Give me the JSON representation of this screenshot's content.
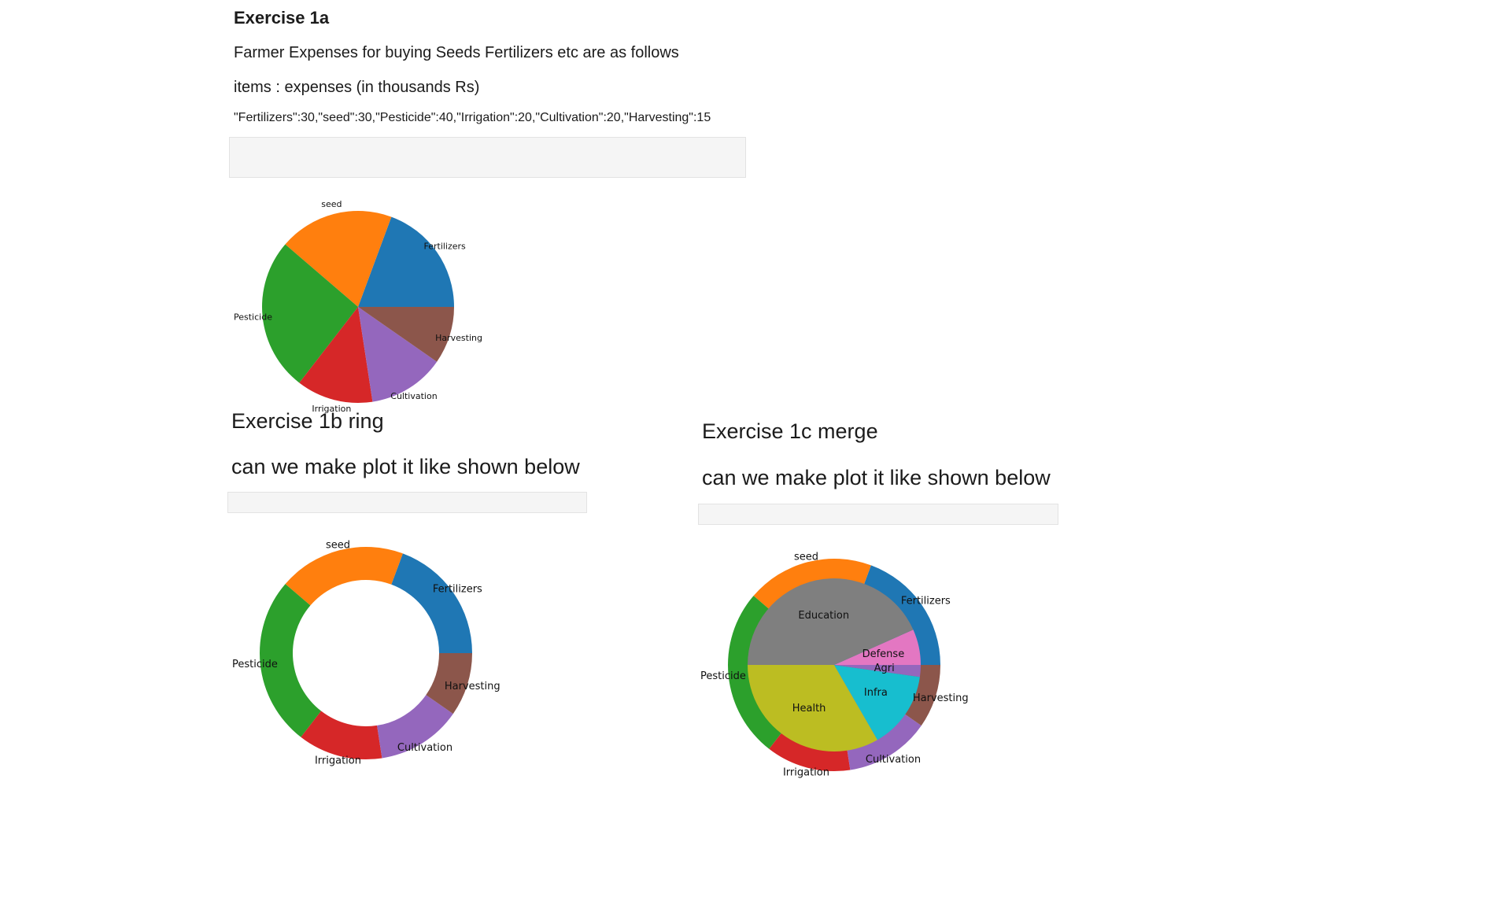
{
  "ex1a": {
    "title": "Exercise 1a",
    "line1": "Farmer Expenses for buying Seeds Fertilizers etc are as follows",
    "line2": "items : expenses (in thousands Rs)",
    "line3": "\"Fertilizers\":30,\"seed\":30,\"Pesticide\":40,\"Irrigation\":20,\"Cultivation\":20,\"Harvesting\":15"
  },
  "ex1b": {
    "title": "Exercise 1b ring",
    "prompt": "can we make plot it like shown below"
  },
  "ex1c": {
    "title": "Exercise 1c merge",
    "prompt": "can we make plot it like shown below"
  },
  "chart_data": [
    {
      "type": "pie",
      "categories": [
        "Fertilizers",
        "seed",
        "Pesticide",
        "Irrigation",
        "Cultivation",
        "Harvesting"
      ],
      "values": [
        30,
        30,
        40,
        20,
        20,
        15
      ],
      "colors": [
        "#1f77b4",
        "#ff7f0e",
        "#2ca02c",
        "#d62728",
        "#9467bd",
        "#8c564b"
      ]
    },
    {
      "type": "pie",
      "categories": [
        "Fertilizers",
        "seed",
        "Pesticide",
        "Irrigation",
        "Cultivation",
        "Harvesting"
      ],
      "values": [
        30,
        30,
        40,
        20,
        20,
        15
      ],
      "colors": [
        "#1f77b4",
        "#ff7f0e",
        "#2ca02c",
        "#d62728",
        "#9467bd",
        "#8c564b"
      ],
      "ring": true
    },
    {
      "type": "pie",
      "outer": {
        "categories": [
          "Fertilizers",
          "seed",
          "Pesticide",
          "Irrigation",
          "Cultivation",
          "Harvesting"
        ],
        "values": [
          30,
          30,
          40,
          20,
          20,
          15
        ],
        "colors": [
          "#1f77b4",
          "#ff7f0e",
          "#2ca02c",
          "#d62728",
          "#9467bd",
          "#8c564b"
        ]
      },
      "inner": {
        "categories": [
          "Defense",
          "Education",
          "Health",
          "Infra",
          "Agri"
        ],
        "values": [
          6,
          39,
          30,
          13,
          2
        ],
        "colors": [
          "#e377c2",
          "#7f7f7f",
          "#bcbd22",
          "#17becf",
          "#9467bd"
        ]
      }
    }
  ]
}
